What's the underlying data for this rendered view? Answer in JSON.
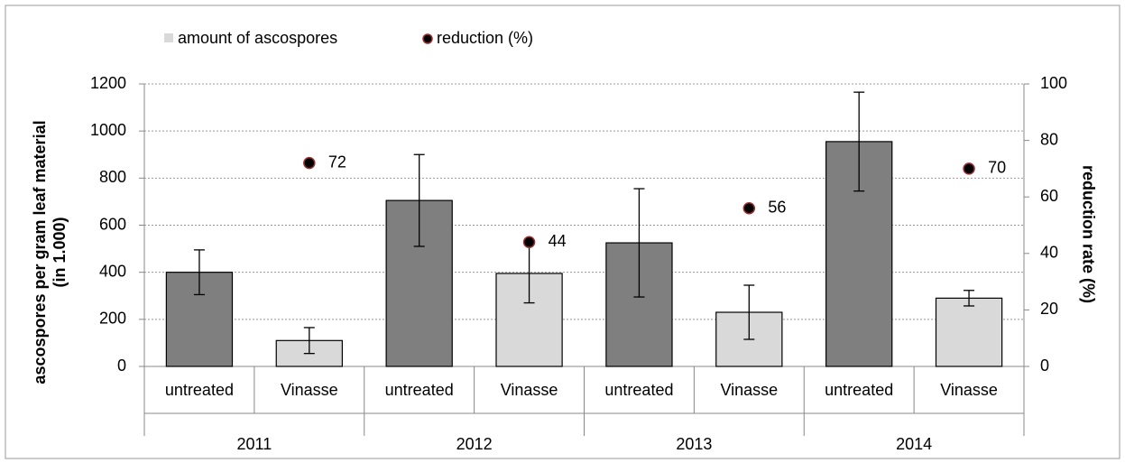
{
  "chart_data": {
    "type": "bar",
    "categories": [
      "untreated",
      "Vinasse",
      "untreated",
      "Vinasse",
      "untreated",
      "Vinasse",
      "untreated",
      "Vinasse"
    ],
    "groups": [
      "2011",
      "2012",
      "2013",
      "2014"
    ],
    "series": [
      {
        "name": "amount of ascospores",
        "type": "bar",
        "color": "#d9d9d9",
        "colors": [
          "#7f7f7f",
          "#d9d9d9",
          "#7f7f7f",
          "#d9d9d9",
          "#7f7f7f",
          "#d9d9d9",
          "#7f7f7f",
          "#d9d9d9"
        ],
        "values": [
          400,
          110,
          705,
          395,
          525,
          230,
          955,
          290
        ],
        "errors": [
          95,
          55,
          195,
          125,
          230,
          115,
          210,
          33
        ]
      },
      {
        "name": "reduction (%)",
        "type": "scatter",
        "axis": "y2",
        "color": "#000000",
        "edge_color": "#a03030",
        "values": [
          null,
          72,
          null,
          44,
          null,
          56,
          null,
          70
        ]
      }
    ],
    "ylabel": [
      "ascospores per gram leaf material",
      "(in 1.000)"
    ],
    "y2label": "reduction rate (%)",
    "ylim": [
      0,
      1200
    ],
    "yticks": [
      0,
      200,
      400,
      600,
      800,
      1000,
      1200
    ],
    "y2lim": [
      0,
      100
    ],
    "y2ticks": [
      0,
      20,
      40,
      60,
      80,
      100
    ],
    "grid": true
  }
}
